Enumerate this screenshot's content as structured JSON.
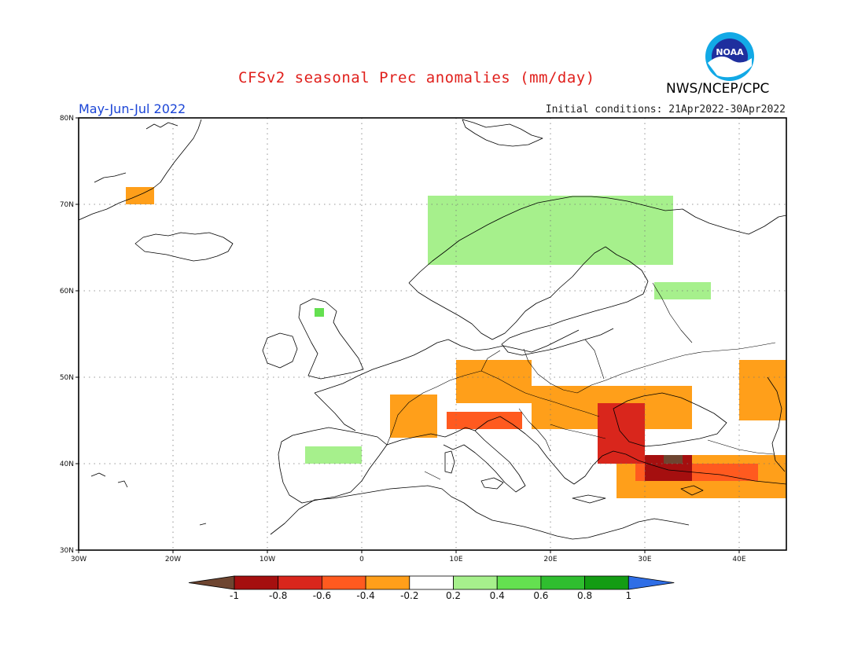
{
  "title": "CFSv2 seasonal Prec anomalies (mm/day)",
  "agency": "NWS/NCEP/CPC",
  "logo_text": "NOAA",
  "period": "May-Jun-Jul 2022",
  "initial_conditions": "Initial conditions: 21Apr2022-30Apr2022",
  "lat_ticks": [
    {
      "value": 80,
      "label": "80N"
    },
    {
      "value": 70,
      "label": "70N"
    },
    {
      "value": 60,
      "label": "60N"
    },
    {
      "value": 50,
      "label": "50N"
    },
    {
      "value": 40,
      "label": "40N"
    },
    {
      "value": 30,
      "label": "30N"
    }
  ],
  "lon_ticks": [
    {
      "value": -30,
      "label": "30W"
    },
    {
      "value": -20,
      "label": "20W"
    },
    {
      "value": -10,
      "label": "10W"
    },
    {
      "value": 0,
      "label": "0"
    },
    {
      "value": 10,
      "label": "10E"
    },
    {
      "value": 20,
      "label": "20E"
    },
    {
      "value": 30,
      "label": "30E"
    },
    {
      "value": 40,
      "label": "40E"
    }
  ],
  "extent": {
    "lon_min": -30,
    "lon_max": 45,
    "lat_min": 30,
    "lat_max": 80
  },
  "colorbar": {
    "colors": [
      "#6e4530",
      "#a50f0f",
      "#d9261c",
      "#ff5a1f",
      "#ff9f1a",
      "#ffffff",
      "#a6f08c",
      "#64e050",
      "#2fbe2f",
      "#139c13",
      "#2f6ee6"
    ],
    "labels": [
      "-1",
      "-0.8",
      "-0.6",
      "-0.4",
      "-0.2",
      "0.2",
      "0.4",
      "0.6",
      "0.8",
      "1"
    ]
  },
  "anomaly_regions": [
    {
      "category": "-0.2 to -0.4",
      "color": "#ff9f1a",
      "area": "Iceland east / Greenland coast",
      "lon": [
        -25,
        -22
      ],
      "lat": [
        70,
        72
      ]
    },
    {
      "category": "-0.2 to -0.4",
      "color": "#ff9f1a",
      "area": "France / Alps",
      "lon": [
        3,
        8
      ],
      "lat": [
        43,
        48
      ]
    },
    {
      "category": "-0.2 to -0.4",
      "color": "#ff9f1a",
      "area": "Germany / Czechia",
      "lon": [
        10,
        18
      ],
      "lat": [
        47,
        52
      ]
    },
    {
      "category": "-0.2 to -0.4",
      "color": "#ff9f1a",
      "area": "Danube basin / Ukraine",
      "lon": [
        18,
        35
      ],
      "lat": [
        44,
        49
      ]
    },
    {
      "category": "-0.2 to -0.4",
      "color": "#ff9f1a",
      "area": "Caucasus / Russia south",
      "lon": [
        40,
        45
      ],
      "lat": [
        45,
        52
      ]
    },
    {
      "category": "-0.2 to -0.4",
      "color": "#ff9f1a",
      "area": "Turkey",
      "lon": [
        27,
        45
      ],
      "lat": [
        36,
        41
      ]
    },
    {
      "category": "-0.4 to -0.6",
      "color": "#ff5a1f",
      "area": "Northern Italy / Slovenia",
      "lon": [
        9,
        17
      ],
      "lat": [
        44,
        46
      ]
    },
    {
      "category": "-0.4 to -0.6",
      "color": "#ff5a1f",
      "area": "Anatolia",
      "lon": [
        29,
        42
      ],
      "lat": [
        38,
        40
      ]
    },
    {
      "category": "-0.6 to -0.8",
      "color": "#d9261c",
      "area": "Balkans / Black Sea west",
      "lon": [
        25,
        30
      ],
      "lat": [
        40,
        47
      ]
    },
    {
      "category": "-0.8 to -1",
      "color": "#a50f0f",
      "area": "Central Anatolia",
      "lon": [
        30,
        35
      ],
      "lat": [
        38,
        41
      ]
    },
    {
      "category": "< -1",
      "color": "#6e4530",
      "area": "Central Anatolia core",
      "lon": [
        32,
        34
      ],
      "lat": [
        40,
        41
      ]
    },
    {
      "category": "0.2 to 0.4",
      "color": "#a6f08c",
      "area": "Norway / Lapland",
      "lon": [
        7,
        33
      ],
      "lat": [
        63,
        71
      ]
    },
    {
      "category": "0.2 to 0.4",
      "color": "#a6f08c",
      "area": "NW Russia",
      "lon": [
        31,
        37
      ],
      "lat": [
        59,
        61
      ]
    },
    {
      "category": "0.2 to 0.4",
      "color": "#a6f08c",
      "area": "Iberia north",
      "lon": [
        -6,
        0
      ],
      "lat": [
        40,
        42
      ]
    },
    {
      "category": "0.4 to 0.6",
      "color": "#64e050",
      "area": "Scotland",
      "lon": [
        -5,
        -4
      ],
      "lat": [
        57,
        58
      ]
    }
  ]
}
